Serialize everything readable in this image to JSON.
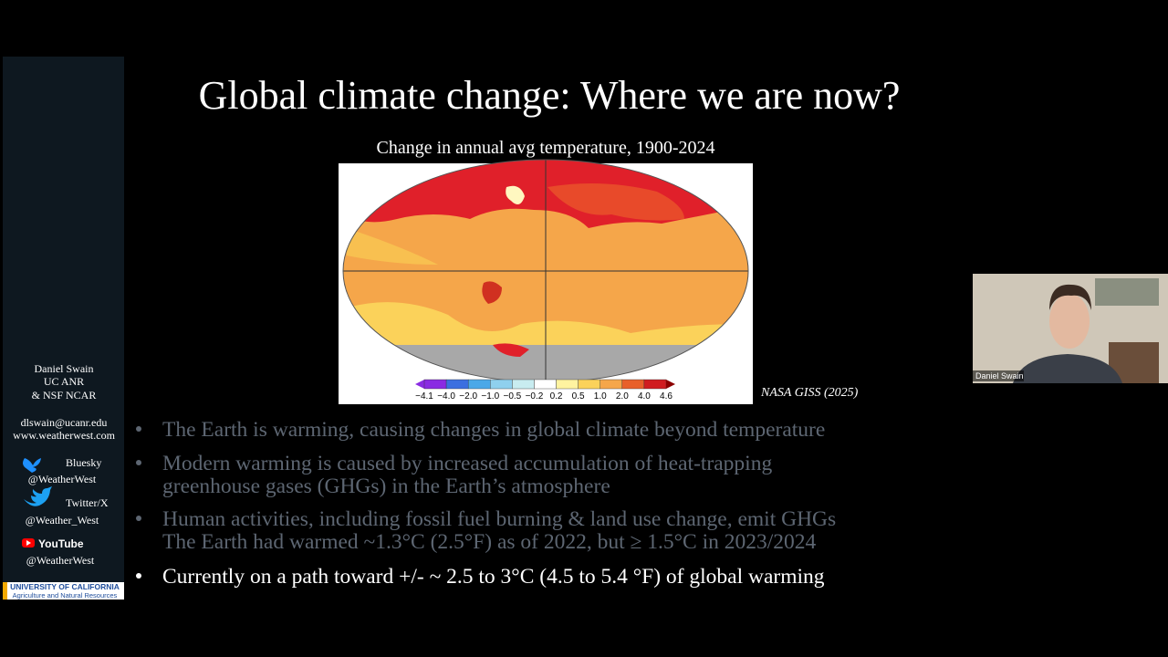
{
  "sidebar": {
    "presenter": [
      "Daniel Swain",
      "UC ANR",
      "& NSF NCAR"
    ],
    "contact": [
      "dlswain@ucanr.edu",
      "www.weatherwest.com"
    ],
    "social": [
      {
        "platform": "Bluesky",
        "handle": "@WeatherWest"
      },
      {
        "platform": "Twitter/X",
        "handle": "@Weather_West"
      },
      {
        "platform": "YouTube",
        "handle": "@WeatherWest"
      }
    ],
    "logo": [
      "UNIVERSITY OF CALIFORNIA",
      "Agriculture and Natural Resources"
    ]
  },
  "slide": {
    "title": "Global climate change: Where we are now?",
    "map_title": "Change in annual avg temperature, 1900-2024",
    "colorbar_labels": [
      "−4.1",
      "−4.0",
      "−2.0",
      "−1.0",
      "−0.5",
      "−0.2",
      "0.2",
      "0.5",
      "1.0",
      "2.0",
      "4.0",
      "4.6"
    ],
    "source": "NASA GISS (2025)",
    "bullets": [
      {
        "lines": [
          "The Earth is warming, causing changes in global climate beyond temperature"
        ]
      },
      {
        "lines": [
          "Modern warming is caused by increased accumulation of heat-trapping",
          "greenhouse gases (GHGs) in the Earth’s atmosphere"
        ]
      },
      {
        "lines": [
          "Human activities, including fossil fuel burning & land use change, emit GHGs",
          "The Earth had warmed ~1.3°C (2.5°F) as of 2022, but ≥ 1.5°C  in 2023/2024"
        ]
      },
      {
        "lines": [
          "Currently on a path toward +/- ~ 2.5 to 3°C (4.5 to 5.4 °F) of global warming"
        ]
      }
    ]
  },
  "video": {
    "speaker": "Daniel Swain"
  }
}
